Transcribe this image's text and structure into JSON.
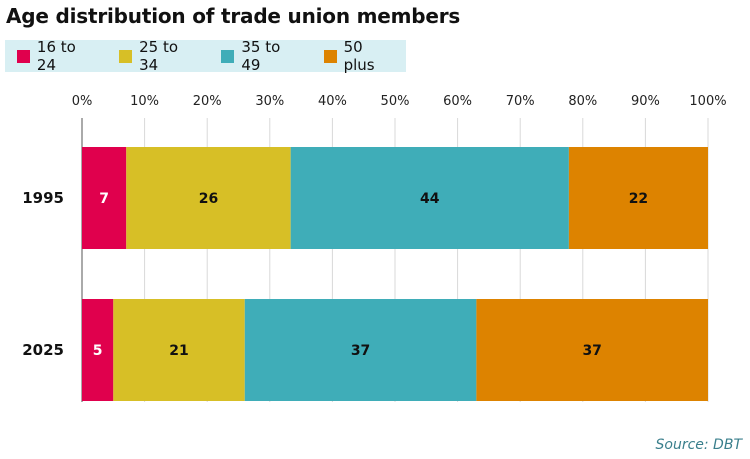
{
  "chart_data": {
    "type": "bar",
    "orientation": "horizontal",
    "stacked": true,
    "title": "Age distribution of trade union members",
    "categories": [
      "1995",
      "2025"
    ],
    "series": [
      {
        "name": "16 to 24",
        "color": "#e0004d",
        "values": [
          7,
          5
        ],
        "labels": [
          "7",
          "5"
        ],
        "label_color": "#ffffff"
      },
      {
        "name": "25 to 34",
        "color": "#d7bf26",
        "values": [
          26,
          21
        ],
        "labels": [
          "26",
          "21"
        ],
        "label_color": "#111111"
      },
      {
        "name": "35 to 49",
        "color": "#3fadb8",
        "values": [
          44,
          37
        ],
        "labels": [
          "44",
          "37"
        ],
        "label_color": "#111111"
      },
      {
        "name": "50 plus",
        "color": "#dd8300",
        "values": [
          22,
          37
        ],
        "labels": [
          "22",
          "37"
        ],
        "label_color": "#111111"
      }
    ],
    "xlim": [
      0,
      100
    ],
    "x_ticks": [
      "0%",
      "10%",
      "20%",
      "30%",
      "40%",
      "50%",
      "60%",
      "70%",
      "80%",
      "90%",
      "100%"
    ],
    "grid": true,
    "legend_position": "top-left",
    "legend_background": "#d8eff3",
    "source": "Source: DBT"
  }
}
